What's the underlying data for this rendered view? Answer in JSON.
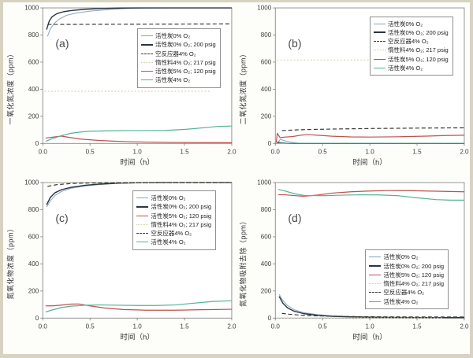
{
  "chart_data": [
    {
      "id": "a",
      "type": "line",
      "panel_label": "(a)",
      "ylabel": "一氧化氮浓度（ppm）",
      "xlabel": "时间（h）",
      "xlim": [
        0,
        2
      ],
      "ylim": [
        0,
        1000
      ],
      "xticks": [
        0,
        0.5,
        1,
        1.5,
        2
      ],
      "xtick_labels": [
        "0.0",
        "0.5",
        "1.0",
        "1.5",
        "2.0"
      ],
      "yticks": [
        0,
        200,
        400,
        600,
        800,
        1000
      ],
      "legend_pos": {
        "left_pct": 55,
        "top_pct": 14
      },
      "series": [
        {
          "name": "活性炭0% O₂",
          "color": "#8ba3bf",
          "dash": "solid",
          "width": 1,
          "x": [
            0.05,
            0.08,
            0.12,
            0.17,
            0.25,
            0.35,
            0.5,
            0.7,
            0.9,
            1.1,
            1.4,
            1.7,
            2.0
          ],
          "y": [
            790,
            845,
            885,
            915,
            945,
            962,
            976,
            988,
            996,
            999,
            1000,
            1000,
            1000
          ]
        },
        {
          "name": "活性炭0% O₂; 200 psig",
          "color": "#2a3540",
          "dash": "solid",
          "width": 1.4,
          "x": [
            0.04,
            0.07,
            0.1,
            0.15,
            0.22,
            0.3,
            0.45,
            0.6,
            0.8,
            1.0,
            1.3,
            1.6,
            2.0
          ],
          "y": [
            840,
            905,
            935,
            958,
            972,
            980,
            990,
            995,
            999,
            1000,
            1000,
            1000,
            1000
          ]
        },
        {
          "name": "空反应器4% O₂",
          "color": "#3a3a3a",
          "dash": "dashed",
          "width": 1.2,
          "x": [
            0.05,
            2.0
          ],
          "y": [
            878,
            882
          ]
        },
        {
          "name": "惰性料4% O₂; 217 psig",
          "color": "#ccd0a0",
          "dash": "dotted",
          "width": 1.2,
          "x": [
            0.02,
            1.78
          ],
          "y": [
            385,
            385
          ]
        },
        {
          "name": "活性炭5% O₂; 120 psig",
          "color": "#c0504d",
          "dash": "solid",
          "width": 1.2,
          "x": [
            0.03,
            0.08,
            0.15,
            0.2,
            0.3,
            0.4,
            0.55,
            0.7,
            0.9,
            1.1,
            1.4,
            1.7,
            2.0
          ],
          "y": [
            40,
            44,
            50,
            54,
            42,
            32,
            24,
            18,
            13,
            10,
            7,
            6,
            5
          ]
        },
        {
          "name": "活性炭4% O₂",
          "color": "#52b394",
          "dash": "solid",
          "width": 1.2,
          "x": [
            0.03,
            0.1,
            0.2,
            0.3,
            0.4,
            0.5,
            0.7,
            0.9,
            1.1,
            1.3,
            1.5,
            1.7,
            1.85,
            2.0
          ],
          "y": [
            15,
            35,
            58,
            75,
            84,
            90,
            93,
            95,
            95,
            96,
            103,
            115,
            125,
            128
          ]
        }
      ]
    },
    {
      "id": "b",
      "type": "line",
      "panel_label": "(b)",
      "ylabel": "二氧化氮浓度（ppm）",
      "xlabel": "时间（h）",
      "xlim": [
        0,
        2
      ],
      "ylim": [
        0,
        1000
      ],
      "xticks": [
        0,
        0.5,
        1,
        1.5,
        2
      ],
      "xtick_labels": [
        "0.0",
        "0.5",
        "1.0",
        "1.5",
        "2.0"
      ],
      "yticks": [
        0,
        200,
        400,
        600,
        800,
        1000
      ],
      "legend_pos": {
        "left_pct": 55,
        "top_pct": 7
      },
      "series": [
        {
          "name": "活性炭0% O₂",
          "color": "#8ba3bf",
          "dash": "solid",
          "width": 1,
          "x": [
            0.02,
            0.05,
            0.08,
            0.12,
            0.18,
            0.25,
            0.35,
            0.6
          ],
          "y": [
            2,
            28,
            24,
            15,
            7,
            2,
            0,
            0
          ]
        },
        {
          "name": "活性炭0% O₂; 200 psig",
          "color": "#2a3540",
          "dash": "solid",
          "width": 1.4,
          "x": [
            0.02,
            0.06,
            0.12,
            0.2,
            0.4,
            2.0
          ],
          "y": [
            8,
            4,
            1,
            0,
            0,
            0
          ]
        },
        {
          "name": "空反应器4% O₂",
          "color": "#3a3a3a",
          "dash": "dashed",
          "width": 1.2,
          "x": [
            0.07,
            0.3,
            0.6,
            1.0,
            1.5,
            2.0
          ],
          "y": [
            95,
            102,
            106,
            110,
            113,
            115
          ]
        },
        {
          "name": "惰性料4% O₂; 217 psig",
          "color": "#ccd0a0",
          "dash": "dotted",
          "width": 1.2,
          "x": [
            0.02,
            1.78
          ],
          "y": [
            615,
            615
          ]
        },
        {
          "name": "活性炭5% O₂; 120 psig",
          "color": "#c0504d",
          "dash": "solid",
          "width": 1.2,
          "x": [
            0.01,
            0.02,
            0.05,
            0.1,
            0.18,
            0.28,
            0.35,
            0.45,
            0.6,
            0.8,
            1.0,
            1.3,
            1.6,
            1.8,
            2.0
          ],
          "y": [
            5,
            75,
            42,
            47,
            50,
            62,
            65,
            60,
            53,
            48,
            47,
            49,
            54,
            58,
            60
          ]
        },
        {
          "name": "活性炭4% O₂",
          "color": "#52b394",
          "dash": "solid",
          "width": 1.2,
          "x": [
            0.02,
            0.5,
            1.0,
            1.5,
            2.0
          ],
          "y": [
            1,
            1,
            1,
            1,
            1
          ]
        }
      ]
    },
    {
      "id": "c",
      "type": "line",
      "panel_label": "(c)",
      "ylabel": "氮氧化物浓度（ppm）",
      "xlabel": "时间（h）",
      "xlim": [
        0,
        2
      ],
      "ylim": [
        0,
        1000
      ],
      "xticks": [
        0,
        0.5,
        1,
        1.5,
        2
      ],
      "xtick_labels": [
        "0.0",
        "0.5",
        "1.0",
        "1.5",
        "2.0"
      ],
      "yticks": [
        0,
        200,
        400,
        600,
        800,
        1000
      ],
      "legend_pos": {
        "left_pct": 53,
        "top_pct": 7
      },
      "series": [
        {
          "name": "活性炭0% O₂",
          "color": "#8ba3bf",
          "dash": "solid",
          "width": 1,
          "x": [
            0.04,
            0.08,
            0.13,
            0.2,
            0.3,
            0.45,
            0.6,
            0.8,
            1.0,
            1.3,
            2.0
          ],
          "y": [
            820,
            865,
            905,
            935,
            958,
            975,
            985,
            994,
            998,
            1000,
            1000
          ]
        },
        {
          "name": "活性炭0% O₂; 200 psig",
          "color": "#2a3540",
          "dash": "solid",
          "width": 1.4,
          "x": [
            0.04,
            0.08,
            0.13,
            0.2,
            0.3,
            0.45,
            0.6,
            0.8,
            1.0,
            1.3,
            2.0
          ],
          "y": [
            835,
            890,
            925,
            948,
            965,
            980,
            989,
            996,
            999,
            1000,
            1000
          ]
        },
        {
          "name": "活性炭5% O₂; 120 psig",
          "color": "#c0504d",
          "dash": "solid",
          "width": 1.2,
          "x": [
            0.03,
            0.1,
            0.2,
            0.3,
            0.38,
            0.5,
            0.65,
            0.85,
            1.1,
            1.4,
            1.7,
            2.0
          ],
          "y": [
            90,
            90,
            96,
            103,
            104,
            90,
            75,
            63,
            58,
            58,
            62,
            65
          ]
        },
        {
          "name": "惰性料4% O₂; 217 psig",
          "color": "#ccd0a0",
          "dash": "dotted",
          "width": 1.2,
          "x": [
            0.02,
            2.0
          ],
          "y": [
            998,
            998
          ]
        },
        {
          "name": "空反应器4% O₂",
          "color": "#3a3a3a",
          "dash": "dashed",
          "width": 1.2,
          "x": [
            0.05,
            0.15,
            0.3,
            0.5,
            0.8,
            1.2,
            2.0
          ],
          "y": [
            972,
            985,
            993,
            997,
            999,
            1000,
            1000
          ]
        },
        {
          "name": "活性炭4% O₂",
          "color": "#52b394",
          "dash": "solid",
          "width": 1.2,
          "x": [
            0.03,
            0.1,
            0.2,
            0.3,
            0.45,
            0.6,
            0.8,
            1.0,
            1.2,
            1.4,
            1.6,
            1.8,
            2.0
          ],
          "y": [
            45,
            60,
            78,
            88,
            95,
            97,
            95,
            93,
            93,
            97,
            110,
            123,
            128
          ]
        }
      ]
    },
    {
      "id": "d",
      "type": "line",
      "panel_label": "(d)",
      "ylabel": "氮氧化物吸附去除（ppm）",
      "xlabel": "时间（h）",
      "xlim": [
        0,
        2
      ],
      "ylim": [
        0,
        1000
      ],
      "xticks": [
        0,
        0.5,
        1,
        1.5,
        2
      ],
      "xtick_labels": [
        "0.0",
        "0.5",
        "1.0",
        "1.5",
        "2.0"
      ],
      "yticks": [
        0,
        200,
        400,
        600,
        800,
        1000
      ],
      "legend_pos": {
        "left_pct": 53,
        "top_pct": 41
      },
      "series": [
        {
          "name": "活性炭0% O₂",
          "color": "#8ba3bf",
          "dash": "solid",
          "width": 1,
          "x": [
            0.04,
            0.08,
            0.13,
            0.2,
            0.3,
            0.45,
            0.6,
            0.8,
            1.0,
            1.3,
            1.6,
            2.0
          ],
          "y": [
            175,
            130,
            92,
            62,
            40,
            25,
            17,
            11,
            8,
            5,
            4,
            3
          ]
        },
        {
          "name": "活性炭0% O₂; 200 psig",
          "color": "#2a3540",
          "dash": "solid",
          "width": 1.4,
          "x": [
            0.04,
            0.08,
            0.13,
            0.2,
            0.3,
            0.45,
            0.6,
            0.8,
            1.0,
            1.3,
            1.6,
            2.0
          ],
          "y": [
            160,
            110,
            75,
            50,
            33,
            20,
            13,
            9,
            6,
            4,
            3,
            3
          ]
        },
        {
          "name": "活性炭5% O₂; 120 psig",
          "color": "#c0504d",
          "dash": "solid",
          "width": 1.2,
          "x": [
            0.03,
            0.1,
            0.2,
            0.3,
            0.45,
            0.6,
            0.8,
            1.0,
            1.2,
            1.4,
            1.6,
            1.8,
            2.0
          ],
          "y": [
            910,
            910,
            904,
            899,
            908,
            922,
            932,
            938,
            941,
            941,
            938,
            935,
            932
          ]
        },
        {
          "name": "惰性料4% O₂; 217 psig",
          "color": "#ccd0a0",
          "dash": "dotted",
          "width": 1.2,
          "x": [
            0.02,
            1.78
          ],
          "y": [
            2,
            2
          ]
        },
        {
          "name": "空反应器4% O₂",
          "color": "#3a3a3a",
          "dash": "dashed",
          "width": 1.2,
          "x": [
            0.07,
            0.15,
            0.3,
            0.5,
            0.8,
            1.2,
            1.6,
            2.0
          ],
          "y": [
            35,
            28,
            20,
            15,
            11,
            9,
            8,
            8
          ]
        },
        {
          "name": "活性炭4% O₂",
          "color": "#52b394",
          "dash": "solid",
          "width": 1.2,
          "x": [
            0.03,
            0.1,
            0.2,
            0.3,
            0.5,
            0.7,
            0.9,
            1.1,
            1.3,
            1.5,
            1.7,
            1.85,
            2.0
          ],
          "y": [
            950,
            938,
            918,
            905,
            903,
            907,
            910,
            909,
            903,
            888,
            874,
            870,
            870
          ]
        }
      ]
    }
  ]
}
